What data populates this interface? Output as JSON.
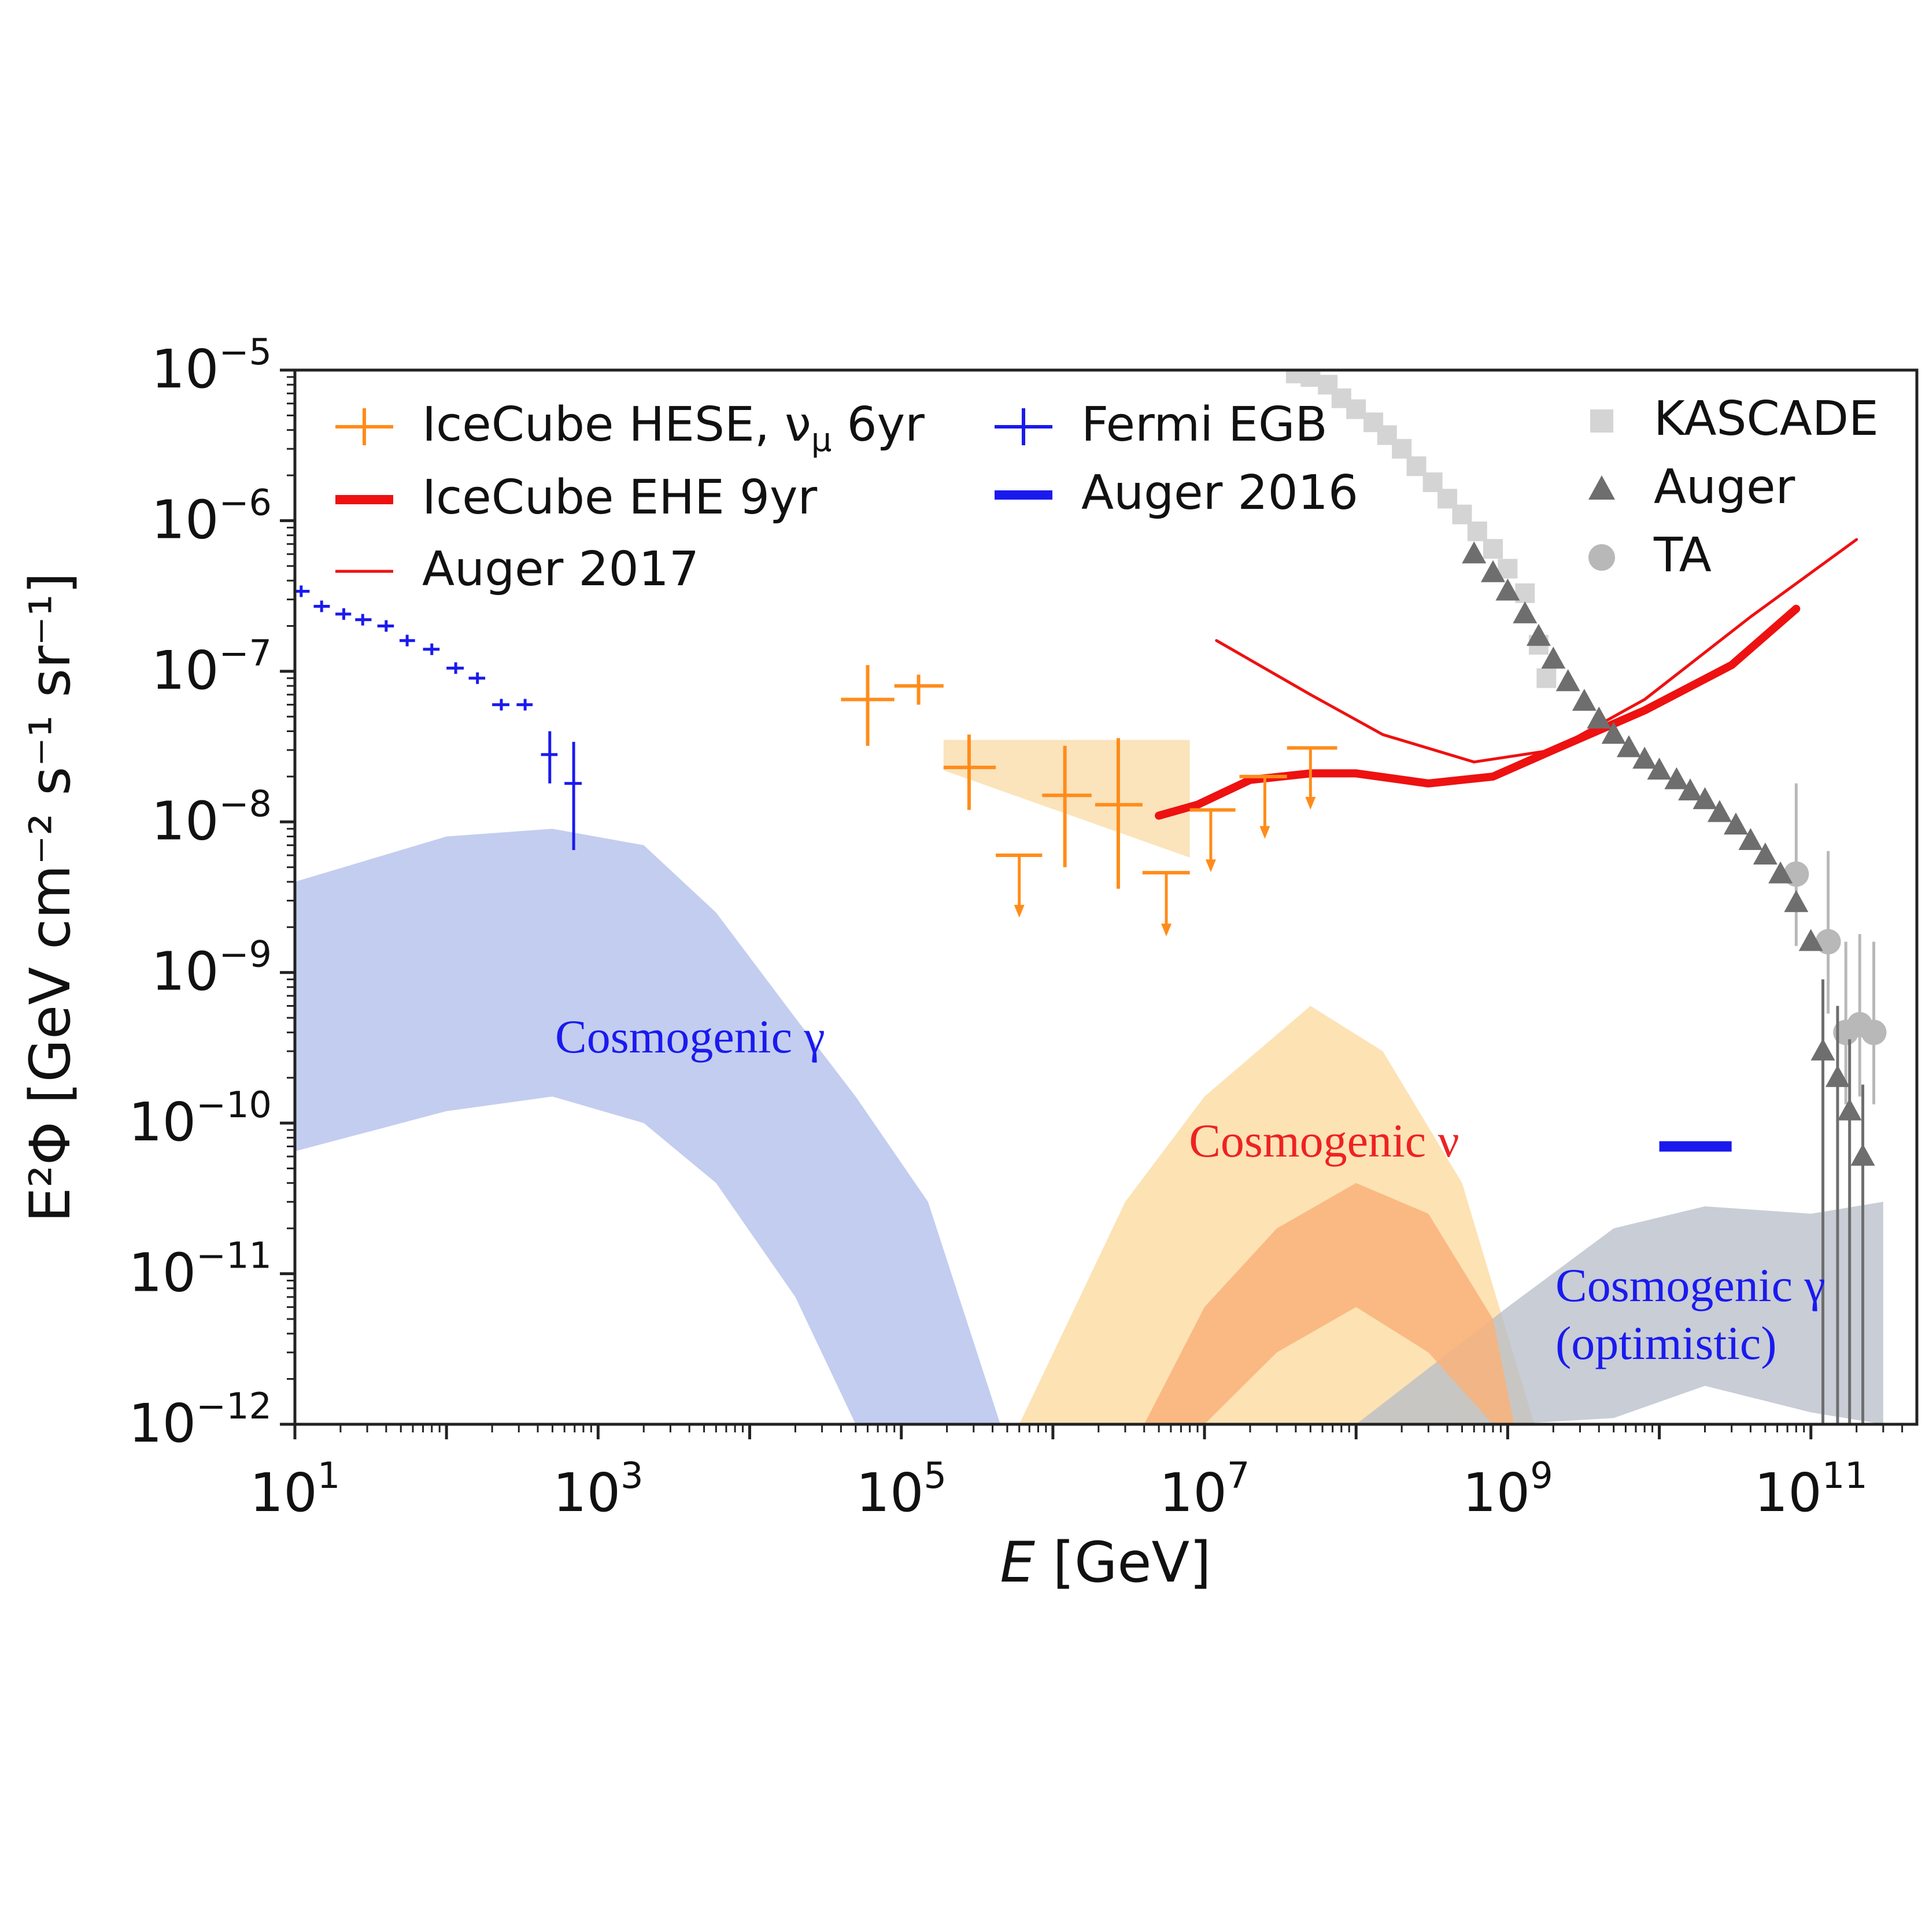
{
  "chart_data": {
    "type": "scatter",
    "xscale": "log",
    "yscale": "log",
    "xlim": [
      10,
      500000000000
    ],
    "ylim": [
      1e-12,
      1e-05
    ],
    "xlabel": "E [GeV]",
    "ylabel": "E²Φ [GeV cm⁻² s⁻¹ sr⁻¹]",
    "x_tick_labels": [
      {
        "value": 10,
        "base": "10",
        "exp": "1"
      },
      {
        "value": 1000,
        "base": "10",
        "exp": "3"
      },
      {
        "value": 100000,
        "base": "10",
        "exp": "5"
      },
      {
        "value": 10000000,
        "base": "10",
        "exp": "7"
      },
      {
        "value": 1000000000,
        "base": "10",
        "exp": "9"
      },
      {
        "value": 100000000000,
        "base": "10",
        "exp": "11"
      }
    ],
    "y_tick_labels": [
      {
        "value": 1e-05,
        "base": "10",
        "exp": "−5"
      },
      {
        "value": 1e-06,
        "base": "10",
        "exp": "−6"
      },
      {
        "value": 1e-07,
        "base": "10",
        "exp": "−7"
      },
      {
        "value": 1e-08,
        "base": "10",
        "exp": "−8"
      },
      {
        "value": 1e-09,
        "base": "10",
        "exp": "−9"
      },
      {
        "value": 1e-10,
        "base": "10",
        "exp": "−10"
      },
      {
        "value": 1e-11,
        "base": "10",
        "exp": "−11"
      },
      {
        "value": 1e-12,
        "base": "10",
        "exp": "−12"
      }
    ],
    "colors": {
      "icecube_hese": "#ff8c1a",
      "icecube_ehe": "#ee1111",
      "fermi": "#1a1aee",
      "cosmo_gamma_band": "#c3cdf0",
      "cosmo_nu_outer": "#fde0b0",
      "cosmo_nu_inner": "#f9b27a",
      "cosmo_gamma_opt": "#b5bcc8",
      "hese_band": "#fbe0b4",
      "kascade": "#d4d4d4",
      "auger_cr": "#6e6e6e",
      "ta": "#b8b8b8"
    },
    "legend": [
      {
        "label": "IceCube HESE, ν",
        "sub": "μ",
        "tail": " 6yr",
        "marker": "cross",
        "color": "#ff8c1a"
      },
      {
        "label": "IceCube EHE 9yr",
        "marker": "thick-line",
        "color": "#ee1111"
      },
      {
        "label": "Auger 2017",
        "marker": "thin-line",
        "color": "#ee1111"
      },
      {
        "label": "Fermi EGB",
        "marker": "cross",
        "color": "#1a1aee"
      },
      {
        "label": "Auger 2016",
        "marker": "thick-line",
        "color": "#1a1aee"
      },
      {
        "label": "KASCADE",
        "marker": "square",
        "color": "#d4d4d4"
      },
      {
        "label": "Auger",
        "marker": "triangle",
        "color": "#6e6e6e"
      },
      {
        "label": "TA",
        "marker": "circle",
        "color": "#b8b8b8"
      }
    ],
    "annotations": [
      {
        "text": "Cosmogenic γ",
        "color": "#1a1aee"
      },
      {
        "text": "Cosmogenic ν",
        "color": "#ee2222"
      },
      {
        "text": "Cosmogenic γ",
        "color": "#1a1aee"
      },
      {
        "text": "(optimistic)",
        "color": "#1a1aee"
      }
    ],
    "series": [
      {
        "name": "Fermi EGB",
        "kind": "points_xerr",
        "points": [
          {
            "x": 11,
            "y": 3.4e-07,
            "xlo": 10,
            "xhi": 12.5
          },
          {
            "x": 15,
            "y": 2.7e-07,
            "xlo": 13.3,
            "xhi": 17
          },
          {
            "x": 21,
            "y": 2.4e-07,
            "xlo": 18.5,
            "xhi": 23.5
          },
          {
            "x": 28,
            "y": 2.2e-07,
            "xlo": 25,
            "xhi": 32
          },
          {
            "x": 40,
            "y": 2e-07,
            "xlo": 35,
            "xhi": 45
          },
          {
            "x": 55,
            "y": 1.6e-07,
            "xlo": 49,
            "xhi": 62
          },
          {
            "x": 80,
            "y": 1.4e-07,
            "xlo": 70,
            "xhi": 90
          },
          {
            "x": 115,
            "y": 1.05e-07,
            "xlo": 100,
            "xhi": 130
          },
          {
            "x": 160,
            "y": 9e-08,
            "xlo": 140,
            "xhi": 180
          },
          {
            "x": 230,
            "y": 6e-08,
            "xlo": 200,
            "xhi": 260
          },
          {
            "x": 330,
            "y": 6e-08,
            "xlo": 290,
            "xhi": 370
          },
          {
            "x": 480,
            "y": 2.8e-08,
            "xlo": 420,
            "xhi": 540,
            "ylo": 1.8e-08,
            "yhi": 4e-08
          },
          {
            "x": 690,
            "y": 1.8e-08,
            "xlo": 600,
            "xhi": 780,
            "ylo": 6.5e-09,
            "yhi": 3.4e-08
          }
        ]
      },
      {
        "name": "IceCube HESE, νμ 6yr",
        "kind": "points_xyerr",
        "points": [
          {
            "x": 60000,
            "y": 6.5e-08,
            "xlo": 40000,
            "xhi": 90000,
            "ylo": 3.2e-08,
            "yhi": 1.1e-07
          },
          {
            "x": 130000,
            "y": 8e-08,
            "xlo": 90000,
            "xhi": 190000,
            "ylo": 6e-08,
            "yhi": 9.5e-08
          },
          {
            "x": 280000,
            "y": 2.3e-08,
            "xlo": 190000,
            "xhi": 420000,
            "ylo": 1.2e-08,
            "yhi": 3.8e-08
          },
          {
            "x": 1200000,
            "y": 1.5e-08,
            "xlo": 850000,
            "xhi": 1800000,
            "ylo": 5e-09,
            "yhi": 3.2e-08
          },
          {
            "x": 2700000,
            "y": 1.3e-08,
            "xlo": 1900000,
            "xhi": 3900000,
            "ylo": 3.6e-09,
            "yhi": 3.6e-08
          }
        ]
      },
      {
        "name": "IceCube HESE upper limits",
        "kind": "upper_limits",
        "points": [
          {
            "x": 600000,
            "y": 6e-09,
            "xlo": 420000,
            "xhi": 850000,
            "yarrow": 2.4e-09
          },
          {
            "x": 5600000,
            "y": 4.6e-09,
            "xlo": 3900000,
            "xhi": 8000000,
            "yarrow": 1.8e-09
          },
          {
            "x": 11000000,
            "y": 1.2e-08,
            "xlo": 8000000,
            "xhi": 16000000,
            "yarrow": 4.8e-09
          },
          {
            "x": 25000000,
            "y": 2e-08,
            "xlo": 17000000,
            "xhi": 35000000,
            "yarrow": 8e-09
          },
          {
            "x": 50000000,
            "y": 3.1e-08,
            "xlo": 35000000,
            "xhi": 75000000,
            "yarrow": 1.25e-08
          }
        ]
      },
      {
        "name": "IceCube HESE band",
        "kind": "band",
        "points": [
          {
            "x": 190000,
            "ylo": 2.2e-08,
            "yhi": 3.5e-08
          },
          {
            "x": 8000000,
            "ylo": 5.8e-09,
            "yhi": 3.5e-08
          }
        ]
      },
      {
        "name": "IceCube EHE 9yr",
        "kind": "line",
        "points": [
          {
            "x": 5000000,
            "y": 1.1e-08
          },
          {
            "x": 9000000,
            "y": 1.3e-08
          },
          {
            "x": 20000000,
            "y": 1.9e-08
          },
          {
            "x": 50000000,
            "y": 2.1e-08
          },
          {
            "x": 100000000,
            "y": 2.1e-08
          },
          {
            "x": 300000000,
            "y": 1.8e-08
          },
          {
            "x": 800000000,
            "y": 2e-08
          },
          {
            "x": 2000000000,
            "y": 3e-08
          },
          {
            "x": 8000000000,
            "y": 5.5e-08
          },
          {
            "x": 30000000000,
            "y": 1.1e-07
          },
          {
            "x": 80000000000,
            "y": 2.6e-07
          }
        ]
      },
      {
        "name": "Auger 2017",
        "kind": "line",
        "points": [
          {
            "x": 12000000,
            "y": 1.6e-07
          },
          {
            "x": 50000000,
            "y": 7e-08
          },
          {
            "x": 150000000,
            "y": 3.8e-08
          },
          {
            "x": 600000000,
            "y": 2.5e-08
          },
          {
            "x": 2000000000,
            "y": 3e-08
          },
          {
            "x": 8000000000,
            "y": 6.5e-08
          },
          {
            "x": 40000000000,
            "y": 2.3e-07
          },
          {
            "x": 200000000000,
            "y": 7.5e-07
          }
        ]
      },
      {
        "name": "Auger 2016",
        "kind": "segment",
        "points": [
          {
            "x": 10000000000,
            "y": 7e-11
          },
          {
            "x": 30000000000,
            "y": 7e-11
          }
        ]
      },
      {
        "name": "Cosmogenic γ",
        "kind": "band",
        "points": [
          {
            "x": 10,
            "ylo": 6.5e-11,
            "yhi": 4e-09
          },
          {
            "x": 100,
            "ylo": 1.2e-10,
            "yhi": 8e-09
          },
          {
            "x": 500,
            "ylo": 1.5e-10,
            "yhi": 9e-09
          },
          {
            "x": 2000,
            "ylo": 1e-10,
            "yhi": 7e-09
          },
          {
            "x": 6000,
            "ylo": 4e-11,
            "yhi": 2.5e-09
          },
          {
            "x": 20000,
            "ylo": 7e-12,
            "yhi": 5e-10
          },
          {
            "x": 50000,
            "ylo": 1e-12,
            "yhi": 1.5e-10
          },
          {
            "x": 150000,
            "ylo": 1e-12,
            "yhi": 3e-11
          },
          {
            "x": 450000,
            "ylo": 1e-12,
            "yhi": 1e-12
          }
        ]
      },
      {
        "name": "Cosmogenic ν (outer)",
        "kind": "band",
        "points": [
          {
            "x": 600000,
            "ylo": 1e-12,
            "yhi": 1e-12
          },
          {
            "x": 3000000,
            "ylo": 1e-12,
            "yhi": 3e-11
          },
          {
            "x": 10000000,
            "ylo": 1e-12,
            "yhi": 1.5e-10
          },
          {
            "x": 50000000,
            "ylo": 1e-12,
            "yhi": 6e-10
          },
          {
            "x": 150000000,
            "ylo": 1e-12,
            "yhi": 3e-10
          },
          {
            "x": 500000000,
            "ylo": 1e-12,
            "yhi": 4e-11
          },
          {
            "x": 1500000000,
            "ylo": 1e-12,
            "yhi": 1e-12
          }
        ]
      },
      {
        "name": "Cosmogenic ν (inner)",
        "kind": "band",
        "points": [
          {
            "x": 4000000,
            "ylo": 1e-12,
            "yhi": 1e-12
          },
          {
            "x": 10000000,
            "ylo": 1e-12,
            "yhi": 6e-12
          },
          {
            "x": 30000000,
            "ylo": 3e-12,
            "yhi": 2e-11
          },
          {
            "x": 100000000,
            "ylo": 6e-12,
            "yhi": 4e-11
          },
          {
            "x": 300000000,
            "ylo": 3e-12,
            "yhi": 2.5e-11
          },
          {
            "x": 800000000,
            "ylo": 1e-12,
            "yhi": 5e-12
          },
          {
            "x": 1100000000,
            "ylo": 1e-12,
            "yhi": 1e-12
          }
        ]
      },
      {
        "name": "Cosmogenic γ (optimistic)",
        "kind": "band",
        "points": [
          {
            "x": 100000000,
            "ylo": 1e-12,
            "yhi": 1e-12
          },
          {
            "x": 1000000000,
            "ylo": 1e-12,
            "yhi": 6e-12
          },
          {
            "x": 5000000000,
            "ylo": 1.1e-12,
            "yhi": 2e-11
          },
          {
            "x": 20000000000,
            "ylo": 1.8e-12,
            "yhi": 2.8e-11
          },
          {
            "x": 100000000000,
            "ylo": 1.2e-12,
            "yhi": 2.5e-11
          },
          {
            "x": 300000000000,
            "ylo": 1e-12,
            "yhi": 3e-11
          }
        ]
      },
      {
        "name": "KASCADE",
        "kind": "markers",
        "points": [
          {
            "x": 40000000,
            "y": 9.5e-06
          },
          {
            "x": 50000000,
            "y": 9e-06
          },
          {
            "x": 65000000,
            "y": 8e-06
          },
          {
            "x": 80000000,
            "y": 6.5e-06
          },
          {
            "x": 100000000,
            "y": 5.5e-06
          },
          {
            "x": 130000000,
            "y": 4.5e-06
          },
          {
            "x": 160000000,
            "y": 3.7e-06
          },
          {
            "x": 200000000,
            "y": 3e-06
          },
          {
            "x": 250000000,
            "y": 2.3e-06
          },
          {
            "x": 320000000,
            "y": 1.8e-06
          },
          {
            "x": 400000000,
            "y": 1.4e-06
          },
          {
            "x": 500000000,
            "y": 1.1e-06
          },
          {
            "x": 630000000,
            "y": 8.5e-07
          },
          {
            "x": 800000000,
            "y": 6.5e-07
          },
          {
            "x": 1000000000,
            "y": 4.8e-07
          },
          {
            "x": 1300000000,
            "y": 3.3e-07
          },
          {
            "x": 1600000000,
            "y": 1.5e-07
          },
          {
            "x": 1800000000,
            "y": 9e-08
          }
        ]
      },
      {
        "name": "Auger",
        "kind": "markers",
        "points": [
          {
            "x": 600000000,
            "y": 6e-07
          },
          {
            "x": 800000000,
            "y": 4.5e-07
          },
          {
            "x": 1000000000,
            "y": 3.4e-07
          },
          {
            "x": 1300000000,
            "y": 2.4e-07
          },
          {
            "x": 1600000000,
            "y": 1.7e-07
          },
          {
            "x": 2000000000,
            "y": 1.2e-07
          },
          {
            "x": 2500000000,
            "y": 8.5e-08
          },
          {
            "x": 3200000000,
            "y": 6.3e-08
          },
          {
            "x": 4000000000,
            "y": 4.8e-08
          },
          {
            "x": 5000000000,
            "y": 3.8e-08
          },
          {
            "x": 6300000000,
            "y": 3.1e-08
          },
          {
            "x": 8000000000,
            "y": 2.6e-08
          },
          {
            "x": 10000000000,
            "y": 2.2e-08
          },
          {
            "x": 13000000000,
            "y": 1.9e-08
          },
          {
            "x": 16000000000,
            "y": 1.6e-08
          },
          {
            "x": 20000000000,
            "y": 1.4e-08
          },
          {
            "x": 25000000000,
            "y": 1.15e-08
          },
          {
            "x": 32000000000,
            "y": 9.5e-09
          },
          {
            "x": 40000000000,
            "y": 7.5e-09
          },
          {
            "x": 50000000000,
            "y": 6e-09
          },
          {
            "x": 63000000000,
            "y": 4.5e-09
          },
          {
            "x": 80000000000,
            "y": 2.9e-09
          },
          {
            "x": 100000000000,
            "y": 1.6e-09
          },
          {
            "x": 120000000000,
            "y": 3e-10
          },
          {
            "x": 150000000000,
            "y": 2e-10
          },
          {
            "x": 180000000000,
            "y": 1.2e-10
          },
          {
            "x": 220000000000,
            "y": 6e-11
          }
        ]
      },
      {
        "name": "TA",
        "kind": "markers",
        "points": [
          {
            "x": 80000000000,
            "y": 4.5e-09
          },
          {
            "x": 130000000000,
            "y": 1.6e-09
          },
          {
            "x": 170000000000,
            "y": 4e-10
          },
          {
            "x": 210000000000,
            "y": 4.5e-10
          },
          {
            "x": 260000000000,
            "y": 4e-10
          }
        ]
      }
    ]
  }
}
